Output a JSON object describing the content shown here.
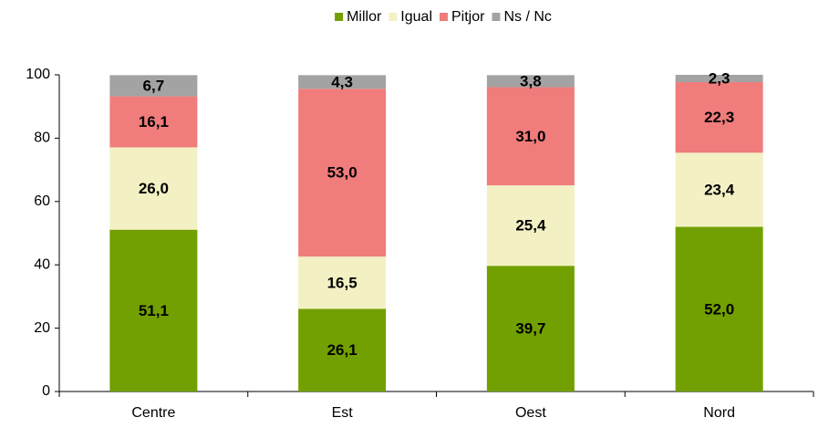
{
  "chart_data": {
    "type": "stacked_bar",
    "categories": [
      "Centre",
      "Est",
      "Oest",
      "Nord"
    ],
    "series": [
      {
        "name": "Millor",
        "color": "#72a000",
        "values": [
          51.1,
          26.1,
          39.7,
          52.0
        ],
        "value_labels": [
          "51,1",
          "26,1",
          "39,7",
          "52,0"
        ]
      },
      {
        "name": "Igual",
        "color": "#f3f1c4",
        "values": [
          26.0,
          16.5,
          25.4,
          23.4
        ],
        "value_labels": [
          "26,0",
          "16,5",
          "25,4",
          "23,4"
        ]
      },
      {
        "name": "Pitjor",
        "color": "#f07c7c",
        "values": [
          16.1,
          53.0,
          31.0,
          22.3
        ],
        "value_labels": [
          "16,1",
          "53,0",
          "31,0",
          "22,3"
        ]
      },
      {
        "name": "Ns / Nc",
        "color": "#a3a3a3",
        "values": [
          6.7,
          4.3,
          3.8,
          2.3
        ],
        "value_labels": [
          "6,7",
          "4,3",
          "3,8",
          "2,3"
        ]
      }
    ],
    "ylim": [
      0,
      100
    ],
    "yticks": [
      0,
      20,
      40,
      60,
      80,
      100
    ],
    "legend": "top"
  }
}
